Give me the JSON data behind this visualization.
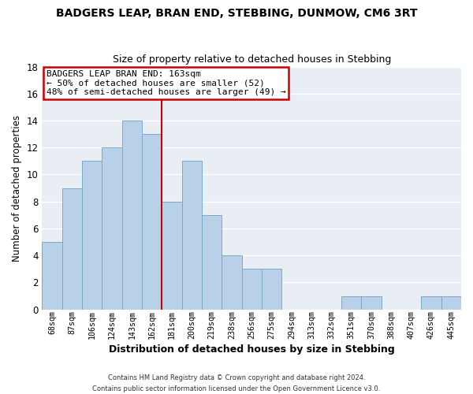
{
  "title": "BADGERS LEAP, BRAN END, STEBBING, DUNMOW, CM6 3RT",
  "subtitle": "Size of property relative to detached houses in Stebbing",
  "xlabel": "Distribution of detached houses by size in Stebbing",
  "ylabel": "Number of detached properties",
  "categories": [
    "68sqm",
    "87sqm",
    "106sqm",
    "124sqm",
    "143sqm",
    "162sqm",
    "181sqm",
    "200sqm",
    "219sqm",
    "238sqm",
    "256sqm",
    "275sqm",
    "294sqm",
    "313sqm",
    "332sqm",
    "351sqm",
    "370sqm",
    "388sqm",
    "407sqm",
    "426sqm",
    "445sqm"
  ],
  "values": [
    5,
    9,
    11,
    12,
    14,
    13,
    8,
    11,
    7,
    4,
    3,
    3,
    0,
    0,
    0,
    1,
    1,
    0,
    0,
    1,
    1
  ],
  "bar_color": "#b8d0e8",
  "bar_edge_color": "#7aaac8",
  "vline_x": 5.5,
  "vline_color": "#cc0000",
  "annotation_line1": "BADGERS LEAP BRAN END: 163sqm",
  "annotation_line2": "← 50% of detached houses are smaller (52)",
  "annotation_line3": "48% of semi-detached houses are larger (49) →",
  "annotation_box_color": "#ffffff",
  "annotation_box_edge": "#cc0000",
  "ylim": [
    0,
    18
  ],
  "yticks": [
    0,
    2,
    4,
    6,
    8,
    10,
    12,
    14,
    16,
    18
  ],
  "footer1": "Contains HM Land Registry data © Crown copyright and database right 2024.",
  "footer2": "Contains public sector information licensed under the Open Government Licence v3.0.",
  "background_color": "#ffffff",
  "plot_bg_color": "#e8eef4",
  "grid_color": "#ffffff",
  "title_fontsize": 10,
  "subtitle_fontsize": 9
}
